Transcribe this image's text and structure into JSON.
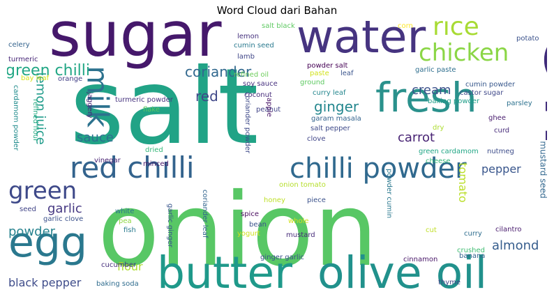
{
  "chart_data": {
    "type": "wordcloud",
    "title": "Word Cloud dari Bahan",
    "words": [
      {
        "text": "salt",
        "color": "#21a386"
      },
      {
        "text": "onion",
        "color": "#58c765"
      },
      {
        "text": "oil",
        "color": "#3f2a7a"
      },
      {
        "text": "sugar",
        "color": "#45186b"
      },
      {
        "text": "water",
        "color": "#463480"
      },
      {
        "text": "fresh",
        "color": "#2a918c"
      },
      {
        "text": "rice",
        "color": "#a8db34"
      },
      {
        "text": "chicken",
        "color": "#8bd646"
      },
      {
        "text": "milk",
        "color": "#2c728e"
      },
      {
        "text": "egg",
        "color": "#2a788e"
      },
      {
        "text": "red chilli",
        "color": "#33638d"
      },
      {
        "text": "chilli powder",
        "color": "#30698e"
      },
      {
        "text": "butter",
        "color": "#1f998a"
      },
      {
        "text": "olive oil",
        "color": "#21918c"
      },
      {
        "text": "green",
        "color": "#3e4989"
      },
      {
        "text": "green chilli",
        "color": "#22a785"
      },
      {
        "text": "coriander",
        "color": "#31688e"
      },
      {
        "text": "ginger",
        "color": "#24878e"
      },
      {
        "text": "cream",
        "color": "#3b518b"
      },
      {
        "text": "red",
        "color": "#3f4788"
      },
      {
        "text": "carrot",
        "color": "#482374"
      },
      {
        "text": "sauce",
        "color": "#2d708e"
      },
      {
        "text": "lemon juice",
        "color": "#1e9b8a"
      },
      {
        "text": "pepper",
        "color": "#39568c"
      },
      {
        "text": "garlic",
        "color": "#453882"
      },
      {
        "text": "powder",
        "color": "#26828e"
      },
      {
        "text": "almond",
        "color": "#365d8d"
      },
      {
        "text": "flour",
        "color": "#addc30"
      },
      {
        "text": "black pepper",
        "color": "#3e4c8a"
      },
      {
        "text": "tomato",
        "color": "#bade28"
      },
      {
        "text": "mustard seed",
        "color": "#31678e"
      },
      {
        "text": "lemon",
        "color": "#46327e"
      },
      {
        "text": "cumin seed",
        "color": "#29798e"
      },
      {
        "text": "salt black",
        "color": "#5ec962"
      },
      {
        "text": "corn",
        "color": "#fde725"
      },
      {
        "text": "potato",
        "color": "#3b528b"
      },
      {
        "text": "celery",
        "color": "#33638d"
      },
      {
        "text": "turmeric",
        "color": "#482878"
      },
      {
        "text": "lamb",
        "color": "#404688"
      },
      {
        "text": "powder salt",
        "color": "#440154"
      },
      {
        "text": "refined oil",
        "color": "#6ccd5a"
      },
      {
        "text": "paste",
        "color": "#d2e21b"
      },
      {
        "text": "leaf",
        "color": "#3a548c"
      },
      {
        "text": "garlic paste",
        "color": "#2e6e8e"
      },
      {
        "text": "bay leaf",
        "color": "#d8e219"
      },
      {
        "text": "orange",
        "color": "#424086"
      },
      {
        "text": "ground",
        "color": "#5ec962"
      },
      {
        "text": "soy sauce",
        "color": "#46307e"
      },
      {
        "text": "curry leaf",
        "color": "#24868e"
      },
      {
        "text": "cumin powder",
        "color": "#38588c"
      },
      {
        "text": "castor sugar",
        "color": "#3f4889"
      },
      {
        "text": "coconut",
        "color": "#472d7b"
      },
      {
        "text": "turmeric powder",
        "color": "#46337f"
      },
      {
        "text": "flake",
        "color": "#5ec962"
      },
      {
        "text": "peanut",
        "color": "#414487"
      },
      {
        "text": "garam masala",
        "color": "#33638d"
      },
      {
        "text": "baking powder",
        "color": "#1f9e89"
      },
      {
        "text": "parsley",
        "color": "#2c718e"
      },
      {
        "text": "salt pepper",
        "color": "#3e4a89"
      },
      {
        "text": "dry",
        "color": "#addc30"
      },
      {
        "text": "ghee",
        "color": "#481c6e"
      },
      {
        "text": "curd",
        "color": "#472c7a"
      },
      {
        "text": "clove",
        "color": "#404588"
      },
      {
        "text": "green cardamom",
        "color": "#21a685"
      },
      {
        "text": "nutmeg",
        "color": "#3d4d8a"
      },
      {
        "text": "jaggery",
        "color": "#482576"
      },
      {
        "text": "refined flour",
        "color": "#25ab82"
      },
      {
        "text": "cardamom powder",
        "color": "#228c8d"
      },
      {
        "text": "apple",
        "color": "#481467"
      },
      {
        "text": "coriander powder",
        "color": "#3e4989"
      },
      {
        "text": "dried",
        "color": "#35b779"
      },
      {
        "text": "minced",
        "color": "#481769"
      },
      {
        "text": "vinegar",
        "color": "#482173"
      },
      {
        "text": "cheese",
        "color": "#35b779"
      },
      {
        "text": "onion tomato",
        "color": "#b5de2b"
      },
      {
        "text": "seed",
        "color": "#414487"
      },
      {
        "text": "honey",
        "color": "#bddf26"
      },
      {
        "text": "piece",
        "color": "#3b528b"
      },
      {
        "text": "powder cumin",
        "color": "#2a788e"
      },
      {
        "text": "spice",
        "color": "#46085c"
      },
      {
        "text": "white",
        "color": "#2b748e"
      },
      {
        "text": "garlic ginger",
        "color": "#39568c"
      },
      {
        "text": "coriander leaf",
        "color": "#32648e"
      },
      {
        "text": "bean",
        "color": "#3b528b"
      },
      {
        "text": "garlic clove",
        "color": "#3b518b"
      },
      {
        "text": "pea",
        "color": "#8fd744"
      },
      {
        "text": "whole",
        "color": "#d0e11c"
      },
      {
        "text": "yogurt",
        "color": "#d0e11c"
      },
      {
        "text": "cut",
        "color": "#c0df25"
      },
      {
        "text": "curry",
        "color": "#2e6d8e"
      },
      {
        "text": "cilantro",
        "color": "#481b6d"
      },
      {
        "text": "fish",
        "color": "#297a8e"
      },
      {
        "text": "mustard",
        "color": "#472c7a"
      },
      {
        "text": "crushed",
        "color": "#40bd72"
      },
      {
        "text": "ginger garlic",
        "color": "#3b528b"
      },
      {
        "text": "cinnamon",
        "color": "#481668"
      },
      {
        "text": "banana",
        "color": "#33638d"
      },
      {
        "text": "cucumber",
        "color": "#472f7d"
      },
      {
        "text": "baking soda",
        "color": "#2f6c8e"
      },
      {
        "text": "thyme",
        "color": "#414487"
      }
    ]
  }
}
